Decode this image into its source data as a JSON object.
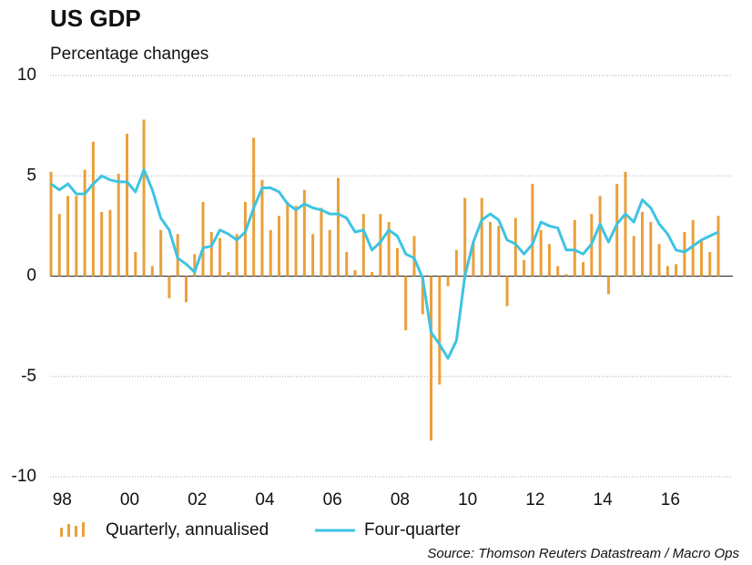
{
  "chart_data": {
    "type": "bar",
    "title": "US GDP",
    "subtitle": "Percentage changes",
    "source": "Source: Thomson Reuters Datastream / Macro Ops",
    "categories": [
      null,
      "98",
      null,
      null,
      null,
      null,
      null,
      null,
      null,
      "00",
      null,
      null,
      null,
      null,
      null,
      null,
      null,
      "02",
      null,
      null,
      null,
      null,
      null,
      null,
      null,
      "04",
      null,
      null,
      null,
      null,
      null,
      null,
      null,
      "06",
      null,
      null,
      null,
      null,
      null,
      null,
      null,
      "08",
      null,
      null,
      null,
      null,
      null,
      null,
      null,
      "10",
      null,
      null,
      null,
      null,
      null,
      null,
      null,
      "12",
      null,
      null,
      null,
      null,
      null,
      null,
      null,
      "14",
      null,
      null,
      null,
      null,
      null,
      null,
      null,
      "16",
      null,
      null,
      null,
      null,
      null,
      null
    ],
    "series": [
      {
        "name": "Quarterly, annualised",
        "type": "bar",
        "color": "#e9a03b",
        "values": [
          5.2,
          3.1,
          4.0,
          4.0,
          5.3,
          6.7,
          3.2,
          3.3,
          5.1,
          7.1,
          1.2,
          7.8,
          0.5,
          2.3,
          -1.1,
          2.1,
          -1.3,
          1.1,
          3.7,
          2.2,
          1.9,
          0.2,
          2.1,
          3.7,
          6.9,
          4.8,
          2.3,
          3.0,
          3.7,
          3.5,
          4.3,
          2.1,
          3.4,
          2.3,
          4.9,
          1.2,
          0.3,
          3.1,
          0.2,
          3.1,
          2.7,
          1.4,
          -2.7,
          2.0,
          -1.9,
          -8.2,
          -5.4,
          -0.5,
          1.3,
          3.9,
          1.7,
          3.9,
          2.7,
          2.5,
          -1.5,
          2.9,
          0.8,
          4.6,
          2.3,
          1.6,
          0.5,
          0.1,
          2.8,
          0.7,
          3.1,
          4.0,
          -0.9,
          4.6,
          5.2,
          2.0,
          3.2,
          2.7,
          1.6,
          0.5,
          0.6,
          2.2,
          2.8,
          1.8,
          1.2,
          3.0
        ]
      },
      {
        "name": "Four-quarter",
        "type": "line",
        "color": "#3ec3e2",
        "values": [
          4.6,
          4.3,
          4.6,
          4.1,
          4.1,
          4.6,
          5.0,
          4.8,
          4.7,
          4.7,
          4.2,
          5.3,
          4.3,
          2.9,
          2.3,
          0.9,
          0.6,
          0.2,
          1.4,
          1.5,
          2.3,
          2.1,
          1.8,
          2.2,
          3.4,
          4.4,
          4.4,
          4.2,
          3.6,
          3.3,
          3.6,
          3.4,
          3.3,
          3.1,
          3.1,
          2.9,
          2.2,
          2.3,
          1.3,
          1.7,
          2.3,
          2.0,
          1.1,
          0.9,
          -0.1,
          -2.8,
          -3.4,
          -4.1,
          -3.2,
          0.0,
          1.7,
          2.8,
          3.1,
          2.8,
          1.8,
          1.6,
          1.1,
          1.6,
          2.7,
          2.5,
          2.4,
          1.3,
          1.3,
          1.1,
          1.6,
          2.6,
          1.7,
          2.6,
          3.1,
          2.7,
          3.8,
          3.4,
          2.6,
          2.1,
          1.3,
          1.2,
          1.5,
          1.8,
          2.0,
          2.2
        ]
      }
    ],
    "ylim": [
      -10,
      10
    ],
    "yticks": [
      10,
      5,
      0,
      -5,
      -10
    ],
    "grid": true
  }
}
